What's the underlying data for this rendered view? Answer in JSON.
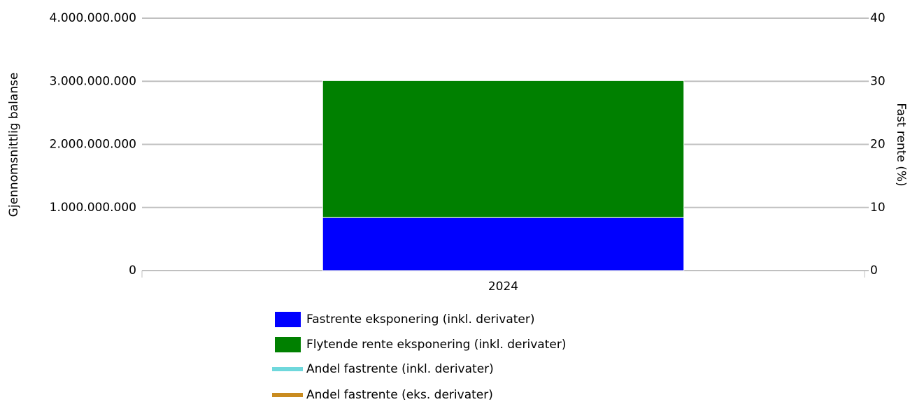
{
  "chart_data": {
    "type": "bar",
    "stacked": true,
    "categories": [
      "2024"
    ],
    "series": [
      {
        "name": "Fastrente eksponering (inkl. derivater)",
        "color": "#0000ff",
        "values": [
          840000000
        ]
      },
      {
        "name": "Flytende rente eksponering (inkl. derivater)",
        "color": "#008000",
        "values": [
          2170000000
        ]
      },
      {
        "name": "Andel fastrente (inkl. derivater)",
        "color": "#6fd8dc",
        "type": "line",
        "axis": "y2",
        "values": [
          null
        ]
      },
      {
        "name": "Andel fastrente (eks. derivater)",
        "color": "#c98b1f",
        "type": "line",
        "axis": "y2",
        "values": [
          null
        ]
      }
    ],
    "ylabel": "Gjennomsnittlig balanse",
    "y2label": "Fast rente (%)",
    "ylim": [
      0,
      4000000000
    ],
    "yticks": [
      0,
      {
        "value": 1000000000,
        "label": "1.000.000.000"
      },
      {
        "value": 2000000000,
        "label": "2.000.000.000"
      },
      {
        "value": 3000000000,
        "label": "3.000.000.000"
      },
      {
        "value": 4000000000,
        "label": "4.000.000.000"
      }
    ],
    "y2lim": [
      0,
      40
    ],
    "y2ticks": [
      0,
      10,
      20,
      30,
      40
    ],
    "grid": true,
    "legend": "bottom"
  }
}
